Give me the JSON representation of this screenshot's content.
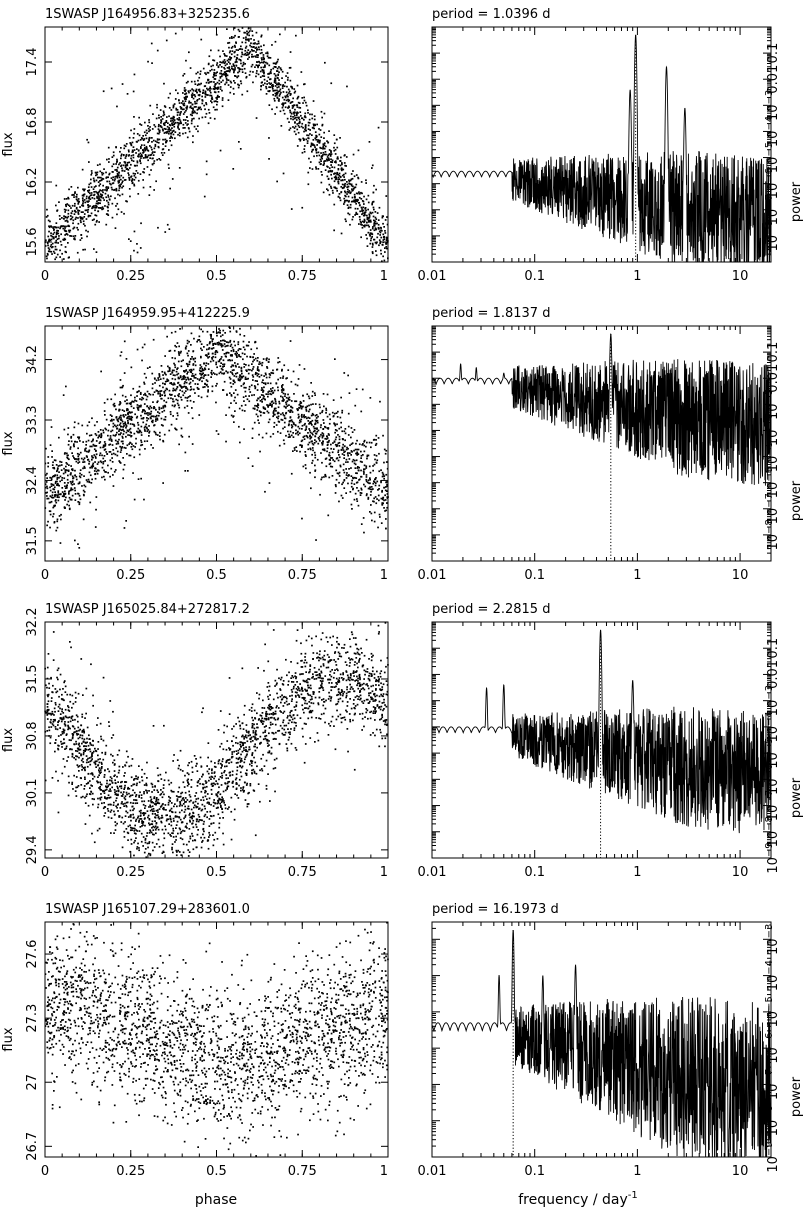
{
  "xlabel_left": "phase",
  "xlabel_right_main": "frequency / day",
  "xlabel_right_sup": "-1",
  "ylabel_left": "flux",
  "ylabel_right": "power",
  "phase_ticks": [
    "0",
    "0.25",
    "0.5",
    "0.75",
    "1"
  ],
  "freq_ticks": [
    "0.01",
    "0.1",
    "1",
    "10"
  ],
  "period_label": "period =",
  "period_unit": "d",
  "chart_data": [
    {
      "type": "scatter",
      "title": "1SWASP J164956.83+325235.6",
      "xlabel": "phase",
      "ylabel": "flux",
      "xlim": [
        0,
        1
      ],
      "ylim": [
        15.4,
        17.75
      ],
      "yticks": [
        "15.6",
        "16.2",
        "16.8",
        "17.4"
      ],
      "shape": "triangle",
      "phase_peak": 0.6,
      "y_min": 15.55,
      "y_max": 17.55,
      "y_scatter": 0.15,
      "n_points": 2400
    },
    {
      "type": "line",
      "title": "period = 1.0396 d",
      "period": "1.0396",
      "xlabel": "frequency / day-1",
      "ylabel": "power",
      "xscale": "log",
      "yscale": "log",
      "xlim": [
        0.01,
        20
      ],
      "ylim": [
        1e-09,
        1
      ],
      "yticks": [
        "10-8",
        "10-7",
        "10-6",
        "10-5",
        "10-4",
        "10-3",
        "0.01",
        "0.1"
      ],
      "peak_frequency": 0.962,
      "peaks": [
        [
          0.962,
          0.5
        ],
        [
          1.92,
          0.03
        ],
        [
          0.85,
          0.004
        ],
        [
          2.9,
          0.0008
        ]
      ],
      "low_freq_level": 3e-06
    },
    {
      "type": "scatter",
      "title": "1SWASP J164959.95+412225.9",
      "xlabel": "phase",
      "ylabel": "flux",
      "xlim": [
        0,
        1
      ],
      "ylim": [
        31.2,
        34.7
      ],
      "yticks": [
        "31.5",
        "32.4",
        "33.3",
        "34.2"
      ],
      "shape": "triangle",
      "phase_peak": 0.5,
      "y_min": 32.2,
      "y_max": 34.3,
      "y_scatter": 0.3,
      "n_points": 2400
    },
    {
      "type": "line",
      "title": "period = 1.8137 d",
      "period": "1.8137",
      "xlabel": "frequency / day-1",
      "ylabel": "power",
      "xscale": "log",
      "yscale": "log",
      "xlim": [
        0.01,
        20
      ],
      "ylim": [
        1e-09,
        1
      ],
      "yticks": [
        "10-8",
        "10-7",
        "10-6",
        "10-5",
        "10-4",
        "10-3",
        "0.01",
        "0.1"
      ],
      "peak_frequency": 0.551,
      "peaks": [
        [
          0.551,
          0.5
        ],
        [
          0.019,
          0.03
        ],
        [
          0.027,
          0.02
        ],
        [
          0.05,
          0.006
        ]
      ],
      "low_freq_level": 0.01
    },
    {
      "type": "scatter",
      "title": "1SWASP J165025.84+272817.2",
      "xlabel": "phase",
      "ylabel": "flux",
      "xlim": [
        0,
        1
      ],
      "ylim": [
        29.3,
        32.2
      ],
      "yticks": [
        "29.4",
        "30.1",
        "30.8",
        "31.5",
        "32.2"
      ],
      "shape": "sine",
      "phase_peak": 0.85,
      "y_min": 29.8,
      "y_max": 31.5,
      "y_scatter": 0.28,
      "n_points": 2400
    },
    {
      "type": "line",
      "title": "period = 2.2815 d",
      "period": "2.2815",
      "xlabel": "frequency / day-1",
      "ylabel": "power",
      "xscale": "log",
      "yscale": "log",
      "xlim": [
        0.01,
        20
      ],
      "ylim": [
        1e-09,
        1
      ],
      "yticks": [
        "10-9",
        "10-8",
        "10-7",
        "10-6",
        "10-5",
        "10-4",
        "10-3",
        "0.01",
        "0.1"
      ],
      "peak_frequency": 0.438,
      "peaks": [
        [
          0.438,
          0.5
        ],
        [
          0.9,
          0.006
        ],
        [
          0.05,
          0.004
        ],
        [
          0.034,
          0.003
        ]
      ],
      "low_freq_level": 0.0001
    },
    {
      "type": "scatter",
      "title": "1SWASP J165107.29+283601.0",
      "xlabel": "phase",
      "ylabel": "flux",
      "xlim": [
        0,
        1
      ],
      "ylim": [
        26.65,
        27.75
      ],
      "yticks": [
        "26.7",
        "27",
        "27.3",
        "27.6"
      ],
      "shape": "sine",
      "phase_peak": 0.05,
      "y_min": 27.1,
      "y_max": 27.35,
      "y_scatter": 0.17,
      "n_points": 2400
    },
    {
      "type": "line",
      "title": "period = 16.1973 d",
      "period": "16.1973",
      "xlabel": "frequency / day-1",
      "ylabel": "power",
      "xscale": "log",
      "yscale": "log",
      "xlim": [
        0.01,
        20
      ],
      "ylim": [
        1e-09,
        0.003
      ],
      "yticks": [
        "10-9",
        "10-8",
        "10-7",
        "10-6",
        "10-5",
        "10-4",
        "10-3"
      ],
      "peak_frequency": 0.0617,
      "peaks": [
        [
          0.0617,
          0.0018
        ],
        [
          0.25,
          0.0002
        ],
        [
          0.12,
          0.0001
        ],
        [
          0.045,
          0.0001
        ]
      ],
      "low_freq_level": 5e-06
    }
  ]
}
